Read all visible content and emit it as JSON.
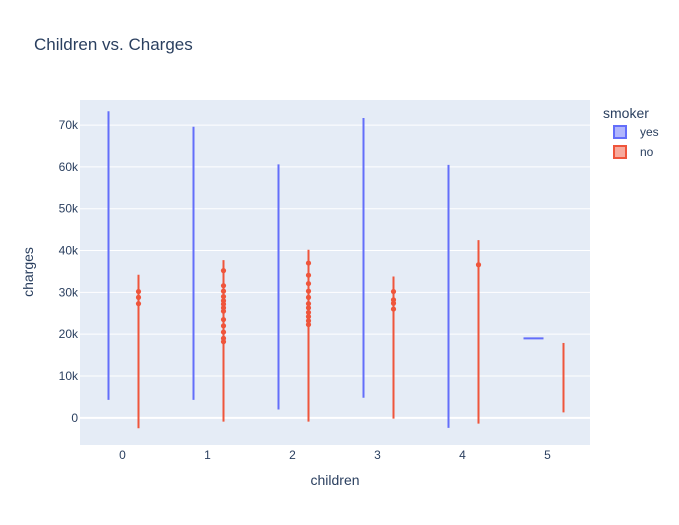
{
  "chart_data": {
    "type": "box",
    "title": "Children vs. Charges",
    "xlabel": "children",
    "ylabel": "charges",
    "categories": [
      "0",
      "1",
      "2",
      "3",
      "4",
      "5"
    ],
    "ylim": [
      -6500,
      76000
    ],
    "yticks": [
      0,
      10000,
      20000,
      30000,
      40000,
      50000,
      60000,
      70000
    ],
    "ytick_labels": [
      "0",
      "10k",
      "20k",
      "30k",
      "40k",
      "50k",
      "60k",
      "70k"
    ],
    "legend": {
      "title": "smoker",
      "position": "top-right"
    },
    "grid": true,
    "series": [
      {
        "name": "yes",
        "color": "#636efa",
        "whiskers": [
          [
            4300,
            73300
          ],
          [
            4300,
            69600
          ],
          [
            2000,
            60600
          ],
          [
            4800,
            71700
          ],
          [
            -2400,
            60500
          ],
          [
            18900,
            19100
          ]
        ],
        "outliers": [
          [],
          [],
          [],
          [],
          [],
          []
        ]
      },
      {
        "name": "no",
        "color": "#ef553b",
        "whiskers": [
          [
            -2500,
            34200
          ],
          [
            -900,
            37700
          ],
          [
            -900,
            40200
          ],
          [
            -200,
            33800
          ],
          [
            -1400,
            42500
          ],
          [
            1300,
            17900
          ]
        ],
        "outliers": [
          [
            27300,
            28800,
            30200
          ],
          [
            18200,
            19000,
            20500,
            22000,
            23500,
            25500,
            26300,
            27200,
            28000,
            29000,
            30300,
            31600,
            35200
          ],
          [
            22300,
            23200,
            24200,
            25200,
            26300,
            27300,
            28800,
            30300,
            32100,
            34100,
            37000
          ],
          [
            26000,
            27400,
            28200,
            30200
          ],
          [
            36600
          ],
          []
        ]
      }
    ]
  }
}
